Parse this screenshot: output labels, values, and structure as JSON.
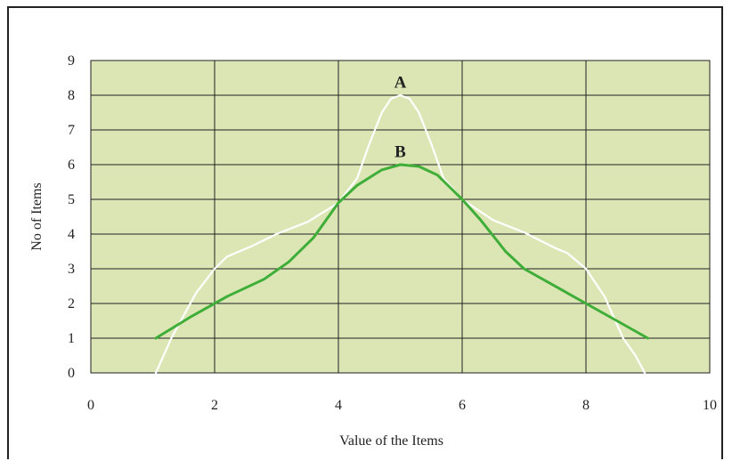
{
  "chart_data": {
    "type": "line",
    "title": "",
    "xlabel": "Value of the Items",
    "ylabel": "No of Items",
    "xlim": [
      0,
      10
    ],
    "ylim": [
      0,
      9
    ],
    "x_ticks": [
      0,
      2,
      4,
      6,
      8,
      10
    ],
    "y_ticks": [
      0,
      1,
      2,
      3,
      4,
      5,
      6,
      7,
      8,
      9
    ],
    "grid": true,
    "plot_background": "#dbe6b4",
    "grid_color": "#222222",
    "series": [
      {
        "name": "A",
        "color": "#ffffff",
        "points": [
          [
            1.05,
            0
          ],
          [
            1.3,
            1
          ],
          [
            1.7,
            2.3
          ],
          [
            2.0,
            3.0
          ],
          [
            2.2,
            3.35
          ],
          [
            2.6,
            3.65
          ],
          [
            3.0,
            4.0
          ],
          [
            3.5,
            4.35
          ],
          [
            4.0,
            4.9
          ],
          [
            4.3,
            5.6
          ],
          [
            4.5,
            6.6
          ],
          [
            4.7,
            7.5
          ],
          [
            4.85,
            7.9
          ],
          [
            5.0,
            8.0
          ],
          [
            5.15,
            7.9
          ],
          [
            5.3,
            7.5
          ],
          [
            5.5,
            6.6
          ],
          [
            5.7,
            5.6
          ],
          [
            6.0,
            5.0
          ],
          [
            6.5,
            4.4
          ],
          [
            7.0,
            4.05
          ],
          [
            7.5,
            3.6
          ],
          [
            7.7,
            3.45
          ],
          [
            8.0,
            3.0
          ],
          [
            8.3,
            2.2
          ],
          [
            8.6,
            1.0
          ],
          [
            8.8,
            0.5
          ],
          [
            8.95,
            0
          ]
        ]
      },
      {
        "name": "B",
        "color": "#3fae38",
        "points": [
          [
            1.05,
            1.0
          ],
          [
            1.6,
            1.6
          ],
          [
            2.2,
            2.2
          ],
          [
            2.8,
            2.7
          ],
          [
            3.2,
            3.2
          ],
          [
            3.6,
            3.9
          ],
          [
            4.0,
            4.9
          ],
          [
            4.3,
            5.4
          ],
          [
            4.7,
            5.85
          ],
          [
            5.0,
            6.0
          ],
          [
            5.3,
            5.95
          ],
          [
            5.6,
            5.7
          ],
          [
            6.0,
            5.0
          ],
          [
            6.3,
            4.4
          ],
          [
            6.7,
            3.5
          ],
          [
            7.0,
            3.0
          ],
          [
            7.4,
            2.6
          ],
          [
            8.0,
            2.0
          ],
          [
            8.5,
            1.5
          ],
          [
            9.0,
            1.0
          ]
        ]
      }
    ],
    "annotations": [
      {
        "text": "A",
        "x": 5.0,
        "y": 8.4
      },
      {
        "text": "B",
        "x": 5.0,
        "y": 6.4
      }
    ]
  }
}
